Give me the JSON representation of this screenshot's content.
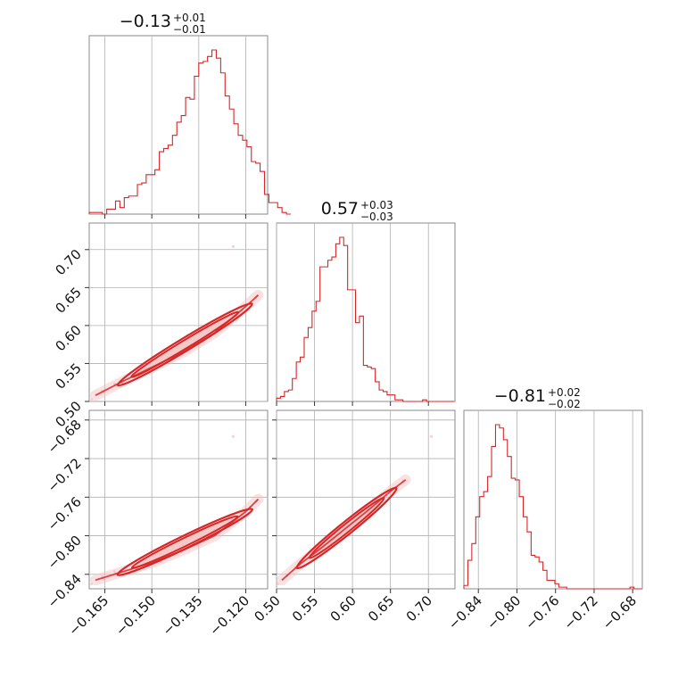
{
  "chart_data": {
    "type": "corner",
    "color": "#d62728",
    "parameters": [
      {
        "id": "p0",
        "title_main": "−0.13",
        "title_plus": "+0.01",
        "title_minus": "−0.01",
        "range": [
          -0.17,
          -0.113
        ],
        "ticks": [
          -0.165,
          -0.15,
          -0.135,
          -0.12
        ],
        "tick_labels": [
          "−0.165",
          "−0.150",
          "−0.135",
          "−0.120"
        ]
      },
      {
        "id": "p1",
        "title_main": "0.57",
        "title_plus": "+0.03",
        "title_minus": "−0.03",
        "range": [
          0.5,
          0.735
        ],
        "ticks": [
          0.5,
          0.55,
          0.6,
          0.65,
          0.7
        ],
        "tick_labels": [
          "0.50",
          "0.55",
          "0.60",
          "0.65",
          "0.70"
        ]
      },
      {
        "id": "p2",
        "title_main": "−0.81",
        "title_plus": "+0.02",
        "title_minus": "−0.02",
        "range": [
          -0.855,
          -0.67
        ],
        "ticks": [
          -0.84,
          -0.8,
          -0.76,
          -0.72,
          -0.68
        ],
        "tick_labels": [
          "−0.84",
          "−0.80",
          "−0.76",
          "−0.72",
          "−0.68"
        ]
      }
    ],
    "histograms": [
      {
        "param": "p0",
        "bin_start": -0.17,
        "bin_width": 0.0014,
        "counts": [
          0.01,
          0.01,
          0.01,
          0.0,
          0.03,
          0.03,
          0.08,
          0.04,
          0.1,
          0.11,
          0.11,
          0.18,
          0.19,
          0.24,
          0.24,
          0.27,
          0.38,
          0.4,
          0.42,
          0.48,
          0.56,
          0.6,
          0.71,
          0.7,
          0.84,
          0.92,
          0.93,
          0.96,
          1.0,
          0.95,
          0.86,
          0.72,
          0.64,
          0.55,
          0.48,
          0.45,
          0.41,
          0.32,
          0.31,
          0.26,
          0.12,
          0.07,
          0.07,
          0.04,
          0.01,
          0.0
        ]
      },
      {
        "param": "p1",
        "bin_start": 0.5,
        "bin_width": 0.0052,
        "counts": [
          0.02,
          0.03,
          0.06,
          0.07,
          0.14,
          0.24,
          0.27,
          0.39,
          0.45,
          0.55,
          0.61,
          0.82,
          0.82,
          0.86,
          0.88,
          0.96,
          1.0,
          0.95,
          0.68,
          0.68,
          0.48,
          0.52,
          0.22,
          0.21,
          0.2,
          0.12,
          0.07,
          0.06,
          0.04,
          0.04,
          0.01,
          0.01,
          0.0,
          0.0,
          0.0,
          0.0,
          0.0,
          0.01,
          0.0,
          0.0,
          0.0,
          0.0,
          0.0,
          0.0,
          0.0
        ]
      },
      {
        "param": "p2",
        "bin_start": -0.855,
        "bin_width": 0.0041,
        "counts": [
          0.02,
          0.17,
          0.27,
          0.43,
          0.55,
          0.58,
          0.67,
          0.85,
          0.98,
          0.96,
          0.89,
          0.79,
          0.66,
          0.65,
          0.55,
          0.43,
          0.34,
          0.2,
          0.19,
          0.16,
          0.11,
          0.05,
          0.05,
          0.03,
          0.01,
          0.01,
          0.0,
          0.0,
          0.0,
          0.0,
          0.0,
          0.0,
          0.0,
          0.0,
          0.0,
          0.0,
          0.0,
          0.0,
          0.0,
          0.0,
          0.0,
          0.0,
          0.01,
          0.0,
          0.0
        ]
      }
    ],
    "pair_trends": [
      {
        "x_param": "p0",
        "y_param": "p1",
        "x": [
          -0.168,
          -0.16,
          -0.15,
          -0.14,
          -0.13,
          -0.12,
          -0.116
        ],
        "y": [
          0.508,
          0.525,
          0.545,
          0.565,
          0.59,
          0.625,
          0.64
        ]
      },
      {
        "x_param": "p0",
        "y_param": "p2",
        "x": [
          -0.168,
          -0.16,
          -0.15,
          -0.14,
          -0.13,
          -0.12,
          -0.116
        ],
        "y": [
          -0.846,
          -0.838,
          -0.828,
          -0.815,
          -0.8,
          -0.775,
          -0.762
        ]
      },
      {
        "x_param": "p1",
        "y_param": "p2",
        "x": [
          0.507,
          0.53,
          0.56,
          0.59,
          0.62,
          0.65,
          0.67
        ],
        "y": [
          -0.846,
          -0.83,
          -0.812,
          -0.793,
          -0.774,
          -0.754,
          -0.742
        ]
      }
    ],
    "outliers": [
      {
        "x_param": "p0",
        "y_param": "p1",
        "x": -0.124,
        "y": 0.704
      },
      {
        "x_param": "p0",
        "y_param": "p2",
        "x": -0.124,
        "y": -0.697
      },
      {
        "x_param": "p1",
        "y_param": "p2",
        "x": 0.704,
        "y": -0.697
      }
    ]
  }
}
